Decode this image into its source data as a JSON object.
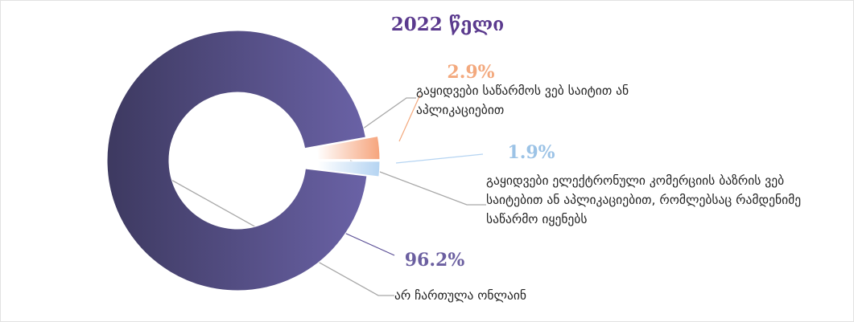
{
  "chart_data": {
    "type": "pie",
    "donut": true,
    "title": "2022 წელი",
    "categories": [
      "არ ჩართულა ონლაინ",
      "გაყიდვები საწარმოს ვებ საიტით ან აპლიკაციებით",
      "გაყიდვები ელექტრონული კომერციის ბაზრის ვებ საიტებით ან აპლიკაციებით, რომლებსაც რამდენიმე საწარმო იყენებს"
    ],
    "values": [
      96.2,
      2.9,
      1.9
    ],
    "value_labels": [
      "96.2%",
      "2.9%",
      "1.9%"
    ],
    "colors": [
      "#6a62a6",
      "#f6a47c",
      "#b5d4f2"
    ],
    "label_colors": [
      "#6b5fa0",
      "#f3a97e",
      "#9cc3e6"
    ],
    "explode": [
      false,
      true,
      true
    ]
  }
}
